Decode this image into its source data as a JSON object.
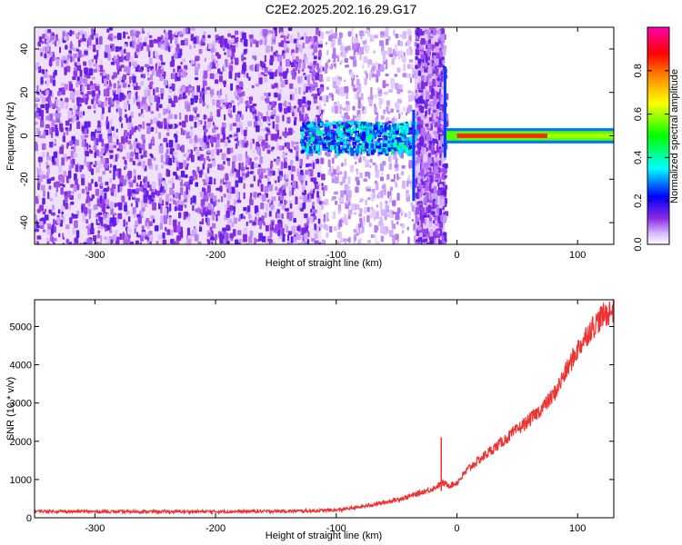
{
  "title": "C2E2.2025.202.16.29.G17",
  "chart_data": [
    {
      "type": "heatmap",
      "xlabel": "Height of straight line (km)",
      "ylabel": "Frequency (Hz)",
      "xlim": [
        -350,
        130
      ],
      "ylim": [
        -50,
        50
      ],
      "x_ticks": [
        -300,
        -200,
        -100,
        0,
        100
      ],
      "y_ticks": [
        -40,
        -20,
        0,
        20,
        40
      ],
      "colorbar": {
        "label": "Normalized spectral amplitude",
        "range": [
          0,
          1
        ],
        "ticks": [
          "0.0",
          "0.2",
          "0.4",
          "0.6",
          "0.8"
        ],
        "colormap": [
          "#ffffff",
          "#d8b8ff",
          "#8a2be2",
          "#0000ff",
          "#00ffff",
          "#00ff00",
          "#ffff00",
          "#ff8000",
          "#ff0000",
          "#ff00aa"
        ]
      },
      "regions": [
        {
          "x": [
            -350,
            -112
          ],
          "content": "dense noise, low amplitude"
        },
        {
          "x": [
            -112,
            -35
          ],
          "content": "sparse light noise"
        },
        {
          "x": [
            -35,
            -10
          ],
          "content": "dense noise band"
        },
        {
          "x": [
            -130,
            -35
          ],
          "content": "signal near 0 Hz, amplitude 0.2-0.4"
        },
        {
          "x": [
            -10,
            130
          ],
          "content": "strong signal near 0 Hz, amplitude 0.6-0.9"
        }
      ]
    },
    {
      "type": "line",
      "xlabel": "Height of straight line (km)",
      "ylabel": "SNR (10 * v/v)",
      "xlim": [
        -350,
        130
      ],
      "ylim": [
        0,
        5700
      ],
      "x_ticks": [
        -300,
        -200,
        -100,
        0,
        100
      ],
      "y_ticks": [
        0,
        1000,
        2000,
        3000,
        4000,
        5000
      ],
      "series": [
        {
          "color": "#ee3333",
          "x": [
            -350,
            -300,
            -250,
            -200,
            -150,
            -120,
            -100,
            -80,
            -60,
            -40,
            -20,
            -12,
            -5,
            0,
            10,
            20,
            30,
            40,
            50,
            60,
            70,
            80,
            90,
            100,
            110,
            120,
            130
          ],
          "y": [
            170,
            160,
            160,
            160,
            170,
            180,
            200,
            280,
            400,
            550,
            760,
            900,
            850,
            920,
            1300,
            1550,
            1800,
            2050,
            2300,
            2550,
            2850,
            3200,
            3800,
            4400,
            4900,
            5250,
            5450
          ]
        }
      ],
      "annotations": [
        {
          "x": -13,
          "y": 2100,
          "note": "spike"
        }
      ]
    }
  ]
}
